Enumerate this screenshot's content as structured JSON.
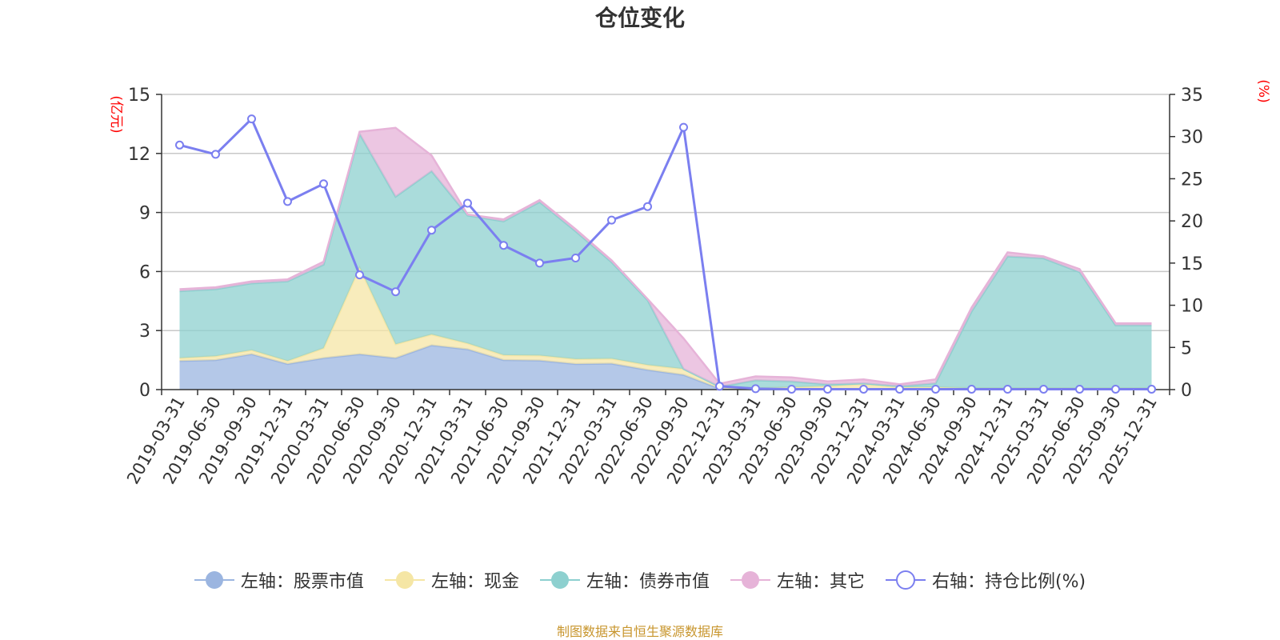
{
  "chart_data": {
    "type": "area",
    "title": "仓位变化",
    "left_axis_unit": "(亿元)",
    "right_axis_unit": "(%)",
    "ylim_left": [
      0,
      15
    ],
    "yticks_left": [
      "0",
      "3",
      "6",
      "9",
      "12",
      "15"
    ],
    "ylim_right": [
      0,
      35
    ],
    "yticks_right": [
      "0",
      "5",
      "10",
      "15",
      "20",
      "25",
      "30",
      "35"
    ],
    "grid": true,
    "stacked": true,
    "categories": [
      "2019-03-31",
      "2019-06-30",
      "2019-09-30",
      "2019-12-31",
      "2020-03-31",
      "2020-06-30",
      "2020-09-30",
      "2020-12-31",
      "2021-03-31",
      "2021-06-30",
      "2021-09-30",
      "2021-12-31",
      "2022-03-31",
      "2022-06-30",
      "2022-09-30",
      "2022-12-31",
      "2023-03-31",
      "2023-06-30",
      "2023-09-30",
      "2023-12-31",
      "2024-03-31",
      "2024-06-30",
      "2024-09-30",
      "2024-12-31",
      "2025-03-31",
      "2025-06-30",
      "2025-09-30",
      "2025-12-31"
    ],
    "series": [
      {
        "name": "左轴：股票市值",
        "axis": "left",
        "color": "#9bb5e0",
        "values": [
          1.45,
          1.5,
          1.8,
          1.3,
          1.6,
          1.8,
          1.6,
          2.25,
          2.05,
          1.5,
          1.48,
          1.3,
          1.32,
          1.0,
          0.75,
          0.05,
          0.02,
          0.02,
          0.02,
          0.02,
          0.02,
          0.02,
          0.02,
          0.02,
          0.02,
          0.02,
          0.02,
          0.02
        ]
      },
      {
        "name": "左轴：现金",
        "axis": "left",
        "color": "#f5e6a5",
        "values": [
          0.15,
          0.2,
          0.2,
          0.15,
          0.5,
          4.4,
          0.7,
          0.55,
          0.3,
          0.25,
          0.25,
          0.25,
          0.25,
          0.25,
          0.3,
          0.1,
          0.05,
          0.1,
          0.15,
          0.25,
          0.1,
          0.1,
          0.05,
          0.05,
          0.05,
          0.05,
          0.05,
          0.05
        ]
      },
      {
        "name": "左轴：债券市值",
        "axis": "left",
        "color": "#8dd0cf",
        "values": [
          3.4,
          3.4,
          3.4,
          4.05,
          4.25,
          6.8,
          7.5,
          8.3,
          6.5,
          6.8,
          7.8,
          6.5,
          4.9,
          3.3,
          0.0,
          0.0,
          0.4,
          0.3,
          0.1,
          0.05,
          0.05,
          0.2,
          3.9,
          6.7,
          6.6,
          5.9,
          3.2,
          3.2
        ]
      },
      {
        "name": "左轴：其它",
        "axis": "left",
        "color": "#e6b3d8",
        "values": [
          0.1,
          0.1,
          0.1,
          0.1,
          0.15,
          0.1,
          3.5,
          0.8,
          0.05,
          0.1,
          0.1,
          0.1,
          0.1,
          0.05,
          1.55,
          0.15,
          0.2,
          0.2,
          0.15,
          0.2,
          0.1,
          0.2,
          0.2,
          0.2,
          0.1,
          0.15,
          0.1,
          0.1
        ]
      },
      {
        "name": "右轴：持仓比例(%)",
        "axis": "right",
        "color": "#7b7ff0",
        "values": [
          29.0,
          27.9,
          32.1,
          22.3,
          24.4,
          13.6,
          11.6,
          18.9,
          22.1,
          17.1,
          15.0,
          15.6,
          20.1,
          21.7,
          31.1,
          0.4,
          0.1,
          0.05,
          0.05,
          0.05,
          0.05,
          0.05,
          0.05,
          0.05,
          0.05,
          0.05,
          0.05,
          0.05
        ]
      }
    ]
  },
  "legend": {
    "items": [
      {
        "label": "左轴：股票市值",
        "color": "#9bb5e0",
        "marker": "filled"
      },
      {
        "label": "左轴：现金",
        "color": "#f5e6a5",
        "marker": "filled"
      },
      {
        "label": "左轴：债券市值",
        "color": "#8dd0cf",
        "marker": "filled"
      },
      {
        "label": "左轴：其它",
        "color": "#e6b3d8",
        "marker": "filled"
      },
      {
        "label": "右轴：持仓比例(%)",
        "color": "#7b7ff0",
        "marker": "hollow"
      }
    ]
  },
  "source_text": "制图数据来自恒生聚源数据库",
  "colors": {
    "axis_unit": "#ff0000",
    "axis_text": "#333333",
    "grid": "#c8c8c8",
    "source": "#c8962e"
  }
}
